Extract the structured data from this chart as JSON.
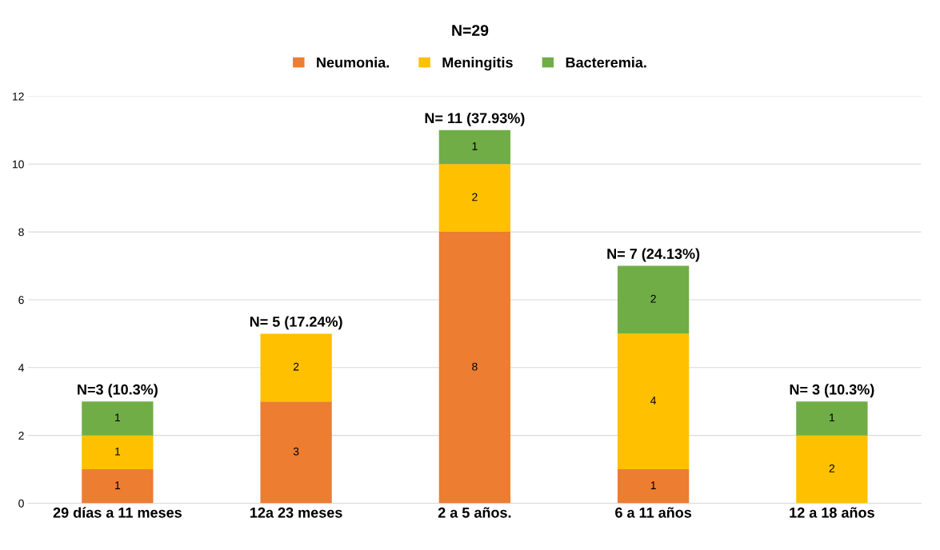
{
  "chart_data": {
    "type": "bar",
    "stacked": true,
    "title": "N=29",
    "categories": [
      "29 días a 11 meses",
      "12a 23 meses",
      "2 a 5 años.",
      "6 a 11 años",
      "12 a 18 años"
    ],
    "series": [
      {
        "name": "Neumonia.",
        "color": "#ed7d31",
        "values": [
          1,
          3,
          8,
          1,
          0
        ],
        "value_labels": [
          "1",
          "3",
          "8",
          "1",
          null
        ]
      },
      {
        "name": "Meningitis",
        "color": "#ffc000",
        "values": [
          1,
          2,
          2,
          4,
          2
        ],
        "value_labels": [
          "1",
          "2",
          "2",
          "4",
          "2"
        ]
      },
      {
        "name": "Bacteremia.",
        "color": "#70ad47",
        "values": [
          1,
          0,
          1,
          2,
          1
        ],
        "value_labels": [
          "1",
          null,
          "1",
          "2",
          "1"
        ]
      }
    ],
    "totals": [
      "N=3 (10.3%)",
      "N= 5 (17.24%)",
      "N= 11 (37.93%)",
      "N= 7 (24.13%)",
      "N= 3 (10.3%)"
    ],
    "ylim": [
      0,
      12
    ],
    "yticks": [
      0,
      2,
      4,
      6,
      8,
      10,
      12
    ],
    "grid": "y",
    "legend": "top"
  }
}
